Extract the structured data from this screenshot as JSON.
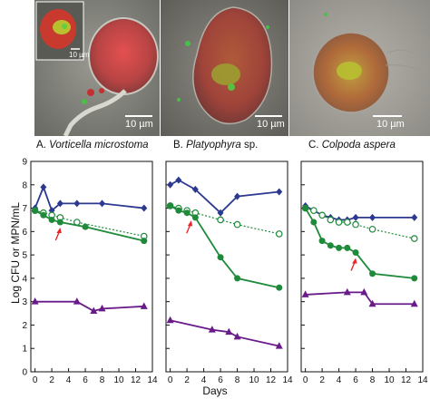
{
  "micrographs": [
    {
      "scale_bar": "10 µm",
      "inset_scale_bar": "10 µm"
    },
    {
      "scale_bar": "10 µm"
    },
    {
      "scale_bar": "10 µm"
    }
  ],
  "colors": {
    "navy": "#2b3990",
    "green": "#1e8a3a",
    "purple": "#6a1b8a",
    "arrow": "#e8262a"
  },
  "ylabel": "Log CFU or MPN/mL",
  "xlabel": "Days",
  "chart_data": [
    {
      "type": "line",
      "panel_label": "A.",
      "title": "Vorticella microstoma",
      "x_ticks": [
        0,
        2,
        4,
        6,
        8,
        10,
        12,
        14
      ],
      "y_ticks": [
        0,
        1,
        2,
        3,
        4,
        5,
        6,
        7,
        8,
        9
      ],
      "xlim": [
        -0.5,
        14
      ],
      "ylim": [
        0,
        9
      ],
      "grid": false,
      "arrow_day": 3,
      "series": [
        {
          "marker": "diamond",
          "style": "solid",
          "color": "navy",
          "x": [
            0,
            1,
            2,
            3,
            5,
            8,
            13
          ],
          "y": [
            7.0,
            7.9,
            6.9,
            7.2,
            7.2,
            7.2,
            7.0
          ]
        },
        {
          "marker": "circle-open",
          "style": "dotted",
          "color": "green",
          "x": [
            0,
            1,
            2,
            3,
            5,
            13
          ],
          "y": [
            6.9,
            6.8,
            6.7,
            6.6,
            6.4,
            5.8
          ]
        },
        {
          "marker": "circle",
          "style": "solid",
          "color": "green",
          "x": [
            0,
            1,
            2,
            3,
            6,
            13
          ],
          "y": [
            6.9,
            6.7,
            6.5,
            6.4,
            6.2,
            5.6
          ]
        },
        {
          "marker": "triangle",
          "style": "solid",
          "color": "purple",
          "x": [
            0,
            5,
            7,
            8,
            13
          ],
          "y": [
            3.0,
            3.0,
            2.6,
            2.7,
            2.8
          ]
        }
      ]
    },
    {
      "type": "line",
      "panel_label": "B.",
      "title": "Platyophyra",
      "title_suffix": "sp.",
      "x_ticks": [
        0,
        2,
        4,
        6,
        8,
        10,
        12,
        14
      ],
      "y_ticks": [
        0,
        1,
        2,
        3,
        4,
        5,
        6,
        7,
        8,
        9
      ],
      "xlim": [
        -0.5,
        14
      ],
      "ylim": [
        0,
        9
      ],
      "grid": false,
      "arrow_day": 2.5,
      "series": [
        {
          "marker": "diamond",
          "style": "solid",
          "color": "navy",
          "x": [
            0,
            1,
            3,
            6,
            8,
            13
          ],
          "y": [
            8.0,
            8.2,
            7.8,
            6.8,
            7.5,
            7.7
          ]
        },
        {
          "marker": "circle-open",
          "style": "dotted",
          "color": "green",
          "x": [
            0,
            1,
            2,
            3,
            6,
            8,
            13
          ],
          "y": [
            7.1,
            7.0,
            6.9,
            6.8,
            6.5,
            6.3,
            5.9
          ]
        },
        {
          "marker": "circle",
          "style": "solid",
          "color": "green",
          "x": [
            0,
            1,
            2,
            3,
            6,
            8,
            13
          ],
          "y": [
            7.1,
            6.9,
            6.8,
            6.6,
            4.9,
            4.0,
            3.6
          ]
        },
        {
          "marker": "triangle",
          "style": "solid",
          "color": "purple",
          "x": [
            0,
            5,
            7,
            8,
            13
          ],
          "y": [
            2.2,
            1.8,
            1.7,
            1.5,
            1.1
          ]
        }
      ]
    },
    {
      "type": "line",
      "panel_label": "C.",
      "title": "Colpoda aspera",
      "x_ticks": [
        0,
        2,
        4,
        6,
        8,
        10,
        12,
        14
      ],
      "y_ticks": [
        0,
        1,
        2,
        3,
        4,
        5,
        6,
        7,
        8,
        9
      ],
      "xlim": [
        -0.5,
        14
      ],
      "ylim": [
        0,
        9
      ],
      "grid": false,
      "arrow_day": 6,
      "series": [
        {
          "marker": "diamond",
          "style": "solid",
          "color": "navy",
          "x": [
            0,
            1,
            2,
            3,
            4,
            5,
            6,
            8,
            13
          ],
          "y": [
            7.1,
            6.9,
            6.7,
            6.6,
            6.5,
            6.5,
            6.6,
            6.6,
            6.6
          ]
        },
        {
          "marker": "circle-open",
          "style": "dotted",
          "color": "green",
          "x": [
            0,
            1,
            2,
            3,
            4,
            5,
            6,
            8,
            13
          ],
          "y": [
            7.0,
            6.9,
            6.7,
            6.5,
            6.4,
            6.4,
            6.3,
            6.1,
            5.7
          ]
        },
        {
          "marker": "circle",
          "style": "solid",
          "color": "green",
          "x": [
            0,
            1,
            2,
            3,
            4,
            5,
            6,
            8,
            13
          ],
          "y": [
            7.0,
            6.4,
            5.6,
            5.4,
            5.3,
            5.3,
            5.1,
            4.2,
            4.0
          ]
        },
        {
          "marker": "triangle",
          "style": "solid",
          "color": "purple",
          "x": [
            0,
            5,
            7,
            8,
            13
          ],
          "y": [
            3.3,
            3.4,
            3.4,
            2.9,
            2.9
          ]
        }
      ]
    }
  ]
}
